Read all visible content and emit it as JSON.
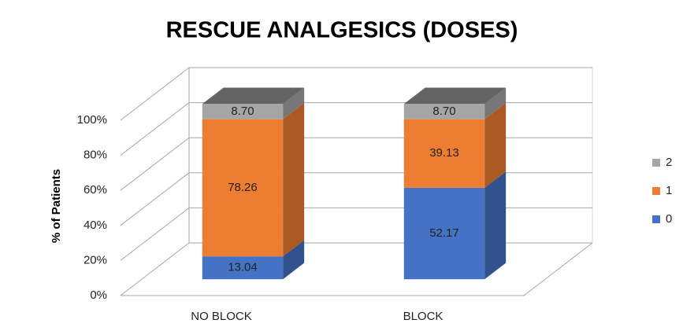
{
  "chart_data": {
    "type": "bar3d-stacked",
    "title": "RESCUE ANALGESICS (DOSES)",
    "y_label": "% of Patients",
    "categories": [
      "NO BLOCK",
      "BLOCK"
    ],
    "series": [
      {
        "name": "0",
        "color": "#4472c4",
        "values": [
          13.04,
          52.17
        ]
      },
      {
        "name": "1",
        "color": "#ed7d31",
        "values": [
          78.26,
          39.13
        ]
      },
      {
        "name": "2",
        "color": "#a5a5a5",
        "values": [
          8.7,
          8.7
        ],
        "value_labels": [
          "8.70",
          "8.70"
        ]
      }
    ],
    "ylim": [
      0,
      100
    ],
    "yticks": [
      {
        "value": 0,
        "label": "0%"
      },
      {
        "value": 20,
        "label": "20%"
      },
      {
        "value": 40,
        "label": "40%"
      },
      {
        "value": 60,
        "label": "60%"
      },
      {
        "value": 80,
        "label": "80%"
      },
      {
        "value": 100,
        "label": "100%"
      }
    ],
    "grid": true,
    "legend": "right"
  }
}
